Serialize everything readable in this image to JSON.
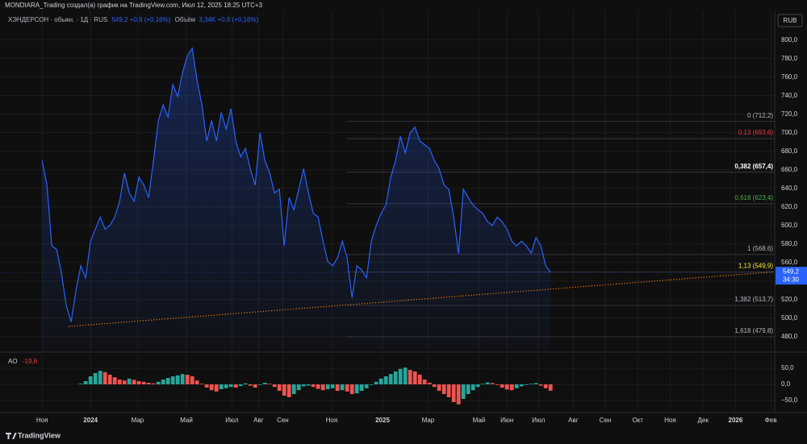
{
  "header": {
    "title": "MONDIARA_Trading создал(а) график на TradingView.com, Июл 12, 2025 18:25 UTC+3",
    "currency": "RUB",
    "footer": "TradingView"
  },
  "chart_data": [
    {
      "type": "line",
      "legend": {
        "symbol": "ХЭНДЕРСОН · обыкн. · 1Д · RUS",
        "quote": "549,2 +0,9 (+0,16%)",
        "volume_name": "Объём",
        "volume": "3,34K +0,9 (+0,16%)"
      },
      "series": [
        {
          "name": "ХЭНДЕРСОН",
          "color": "#2962ff",
          "values": [
            670,
            643.5,
            578,
            574,
            548,
            513,
            496,
            530,
            556.5,
            543.5,
            583,
            596,
            609,
            596,
            600,
            609,
            626,
            656.5,
            635,
            626,
            652,
            643.5,
            630,
            670,
            713,
            730,
            717,
            752,
            739,
            765,
            783,
            791,
            756.5,
            730,
            691,
            713,
            691,
            722,
            704,
            726,
            691,
            674,
            683,
            661,
            643.5,
            700,
            670,
            656.5,
            635,
            639,
            578,
            630,
            617,
            639,
            661,
            635,
            613,
            609,
            583,
            561,
            556.5,
            565,
            583,
            565,
            522,
            556.5,
            552,
            543.5,
            583,
            600,
            613,
            622,
            652,
            670,
            696,
            678,
            700,
            706,
            691,
            687,
            683,
            670,
            661,
            643.5,
            639,
            609,
            569.6,
            639,
            630,
            622,
            617,
            613,
            604,
            600,
            609,
            604,
            596,
            583,
            578,
            583,
            578,
            570,
            587,
            578,
            556.5,
            549.2
          ]
        }
      ],
      "last_label": "549,2",
      "countdown": "34:30",
      "xlim": [
        -8.7,
        151.3
      ],
      "xticks": [
        {
          "value": 0,
          "label": "Ноя"
        },
        {
          "value": 10,
          "label": "2024"
        },
        {
          "value": 19.7,
          "label": "Мар"
        },
        {
          "value": 29.8,
          "label": "Май"
        },
        {
          "value": 39.2,
          "label": "Июл"
        },
        {
          "value": 44.7,
          "label": "Авг"
        },
        {
          "value": 49.7,
          "label": "Сен"
        },
        {
          "value": 59.8,
          "label": "Ноя"
        },
        {
          "value": 70.3,
          "label": "2025"
        },
        {
          "value": 79.7,
          "label": "Мар"
        },
        {
          "value": 90.2,
          "label": "Май"
        },
        {
          "value": 96,
          "label": "Июн"
        },
        {
          "value": 102.5,
          "label": "Июл"
        },
        {
          "value": 109.7,
          "label": "Авг"
        },
        {
          "value": 116.3,
          "label": "Сен"
        },
        {
          "value": 123,
          "label": "Окт"
        },
        {
          "value": 129.7,
          "label": "Ноя"
        },
        {
          "value": 136.5,
          "label": "Дек"
        },
        {
          "value": 143.2,
          "label": "2026"
        },
        {
          "value": 150.5,
          "label": "Фев"
        }
      ],
      "ylim": [
        465,
        831
      ],
      "yticks": [
        {
          "value": 800,
          "label": "800,0"
        },
        {
          "value": 780,
          "label": "780,0"
        },
        {
          "value": 760,
          "label": "760,0"
        },
        {
          "value": 740,
          "label": "740,0"
        },
        {
          "value": 720,
          "label": "720,0"
        },
        {
          "value": 700,
          "label": "700,0"
        },
        {
          "value": 680,
          "label": "680,0"
        },
        {
          "value": 660,
          "label": "660,0"
        },
        {
          "value": 640,
          "label": "640,0"
        },
        {
          "value": 620,
          "label": "620,0"
        },
        {
          "value": 600,
          "label": "600,0"
        },
        {
          "value": 580,
          "label": "580,0"
        },
        {
          "value": 560,
          "label": "560,0"
        },
        {
          "value": 540,
          "label": "540,0"
        },
        {
          "value": 520,
          "label": "520,0"
        },
        {
          "value": 500,
          "label": "500,0"
        },
        {
          "value": 480,
          "label": "480,0"
        }
      ],
      "grid": true,
      "fib_levels": [
        {
          "label": "0 (712,2)",
          "value": 712.2,
          "color": "#b2b5be"
        },
        {
          "label": "0,13 (693,6)",
          "value": 693.6,
          "color": "#f23645"
        },
        {
          "label": "0,382 (657,4)",
          "value": 657.4,
          "color": "#ffffff"
        },
        {
          "label": "0,618 (623,4)",
          "value": 623.4,
          "color": "#4caf50"
        },
        {
          "label": "1 (568,6)",
          "value": 568.6,
          "color": "#b2b5be"
        },
        {
          "label": "1,13 (549,9)",
          "value": 549.9,
          "color": "#ffeb3b"
        },
        {
          "label": "1,382 (513,7)",
          "value": 513.7,
          "color": "#b2b5be"
        },
        {
          "label": "1,618 (479,8)",
          "value": 479.8,
          "color": "#b2b5be"
        }
      ],
      "trendline": {
        "x": [
          5.5,
          151.3
        ],
        "values": [
          491,
          550
        ],
        "color": "#f57c00"
      }
    },
    {
      "type": "bar",
      "name": "AO",
      "legend_value": "-19,6",
      "up_color": "#26a69a",
      "down_color": "#ef5350",
      "values": [
        null,
        null,
        null,
        null,
        null,
        null,
        null,
        null,
        2,
        10,
        25,
        35,
        42,
        38,
        30,
        22,
        15,
        12,
        18,
        14,
        10,
        8,
        5,
        3,
        8,
        15,
        20,
        25,
        28,
        32,
        30,
        25,
        12,
        2,
        -10,
        -18,
        -22,
        -15,
        -12,
        -8,
        -10,
        -5,
        3,
        -4,
        -10,
        -2,
        5,
        2,
        -8,
        -20,
        -35,
        -40,
        -30,
        -18,
        -6,
        -4,
        -8,
        -14,
        -18,
        -15,
        -12,
        -20,
        -18,
        -22,
        -30,
        -28,
        -20,
        -12,
        -2,
        8,
        18,
        25,
        32,
        40,
        48,
        52,
        45,
        40,
        30,
        15,
        5,
        -8,
        -20,
        -30,
        -40,
        -55,
        -62,
        -45,
        -30,
        -18,
        -8,
        2,
        6,
        4,
        -2,
        -10,
        -16,
        -18,
        -12,
        -6,
        -2,
        2,
        4,
        -4,
        -12,
        -19.6
      ],
      "ylim": [
        -82.5,
        92.5
      ],
      "yticks": [
        {
          "value": 50,
          "label": "50,0"
        },
        {
          "value": 0,
          "label": "0,0"
        },
        {
          "value": -50,
          "label": "−50,0"
        }
      ]
    }
  ]
}
